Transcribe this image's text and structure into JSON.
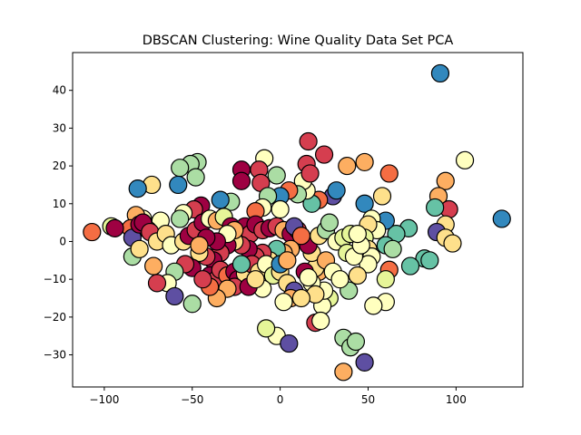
{
  "chart_data": {
    "type": "scatter",
    "title": "DBSCAN Clustering: Wine Quality Data Set PCA",
    "xlabel": "",
    "ylabel": "",
    "xlim": [
      -118,
      138
    ],
    "ylim": [
      -38.5,
      50
    ],
    "xticks": [
      -100,
      -50,
      0,
      50,
      100
    ],
    "yticks": [
      -30,
      -20,
      -10,
      0,
      10,
      20,
      30,
      40
    ],
    "xtick_labels": [
      "−100",
      "−50",
      "0",
      "50",
      "100"
    ],
    "ytick_labels": [
      "−30",
      "−20",
      "−10",
      "0",
      "10",
      "20",
      "30",
      "40"
    ],
    "grid": false,
    "legend": "none",
    "colormap": "Spectral",
    "colors": {
      "c0": "#9e0142",
      "c1": "#d53e4f",
      "c2": "#f46d43",
      "c3": "#fdae61",
      "c4": "#fee08b",
      "c5": "#ffffbf",
      "c6": "#e6f598",
      "c7": "#abdda4",
      "c8": "#66c2a5",
      "c9": "#3288bd",
      "c10": "#5e4fa2"
    },
    "points": [
      {
        "x": 91,
        "y": 44.5,
        "c": "c9"
      },
      {
        "x": 105,
        "y": 21.5,
        "c": "c5"
      },
      {
        "x": 126,
        "y": 6,
        "c": "c9"
      },
      {
        "x": 16,
        "y": 26.5,
        "c": "c1"
      },
      {
        "x": 25,
        "y": 23,
        "c": "c1"
      },
      {
        "x": 38,
        "y": 20,
        "c": "c3"
      },
      {
        "x": 48,
        "y": 21,
        "c": "c3"
      },
      {
        "x": 62,
        "y": 18,
        "c": "c2"
      },
      {
        "x": 94,
        "y": 16,
        "c": "c3"
      },
      {
        "x": 90,
        "y": 12,
        "c": "c3"
      },
      {
        "x": 96,
        "y": 8.5,
        "c": "c1"
      },
      {
        "x": 88,
        "y": 9,
        "c": "c8"
      },
      {
        "x": 94,
        "y": 4.5,
        "c": "c4"
      },
      {
        "x": 89,
        "y": 2.5,
        "c": "c10"
      },
      {
        "x": 94,
        "y": 1,
        "c": "c4"
      },
      {
        "x": 98,
        "y": -0.5,
        "c": "c4"
      },
      {
        "x": 73,
        "y": 3.5,
        "c": "c8"
      },
      {
        "x": 66,
        "y": 2,
        "c": "c8"
      },
      {
        "x": 60,
        "y": 5.5,
        "c": "c9"
      },
      {
        "x": 58,
        "y": 12,
        "c": "c4"
      },
      {
        "x": 48,
        "y": 10,
        "c": "c9"
      },
      {
        "x": 52,
        "y": 6,
        "c": "c5"
      },
      {
        "x": 55,
        "y": 3,
        "c": "c5"
      },
      {
        "x": 50,
        "y": 4.5,
        "c": "c4"
      },
      {
        "x": 48,
        "y": 1,
        "c": "c6"
      },
      {
        "x": 50,
        "y": -2,
        "c": "c4"
      },
      {
        "x": 52,
        "y": -4,
        "c": "c5"
      },
      {
        "x": 50,
        "y": -6,
        "c": "c5"
      },
      {
        "x": 60,
        "y": -1,
        "c": "c8"
      },
      {
        "x": 64,
        "y": -2,
        "c": "c7"
      },
      {
        "x": 62,
        "y": -7.5,
        "c": "c2"
      },
      {
        "x": 60,
        "y": -10,
        "c": "c6"
      },
      {
        "x": 82,
        "y": -4.5,
        "c": "c8"
      },
      {
        "x": 85,
        "y": -5,
        "c": "c8"
      },
      {
        "x": 74,
        "y": -6.5,
        "c": "c8"
      },
      {
        "x": 60,
        "y": -16,
        "c": "c5"
      },
      {
        "x": 53,
        "y": -17,
        "c": "c5"
      },
      {
        "x": 48,
        "y": -32,
        "c": "c10"
      },
      {
        "x": 36,
        "y": -34.5,
        "c": "c3"
      },
      {
        "x": 36,
        "y": -25.5,
        "c": "c7"
      },
      {
        "x": 40,
        "y": -28,
        "c": "c7"
      },
      {
        "x": 43,
        "y": -26.5,
        "c": "c7"
      },
      {
        "x": 39,
        "y": -13,
        "c": "c7"
      },
      {
        "x": 28,
        "y": -15,
        "c": "c6"
      },
      {
        "x": 24,
        "y": -17,
        "c": "c5"
      },
      {
        "x": 20,
        "y": -21.5,
        "c": "c1"
      },
      {
        "x": 23,
        "y": -21,
        "c": "c5"
      },
      {
        "x": 25,
        "y": -13,
        "c": "c5"
      },
      {
        "x": 22,
        "y": -8,
        "c": "c3"
      },
      {
        "x": 20,
        "y": -7,
        "c": "c4"
      },
      {
        "x": 18,
        "y": -3,
        "c": "c4"
      },
      {
        "x": 16,
        "y": -1,
        "c": "c0"
      },
      {
        "x": 22,
        "y": 1.5,
        "c": "c4"
      },
      {
        "x": 26,
        "y": 3,
        "c": "c7"
      },
      {
        "x": 28,
        "y": 5,
        "c": "c7"
      },
      {
        "x": 32,
        "y": 0,
        "c": "c5"
      },
      {
        "x": 36,
        "y": 1,
        "c": "c6"
      },
      {
        "x": 40,
        "y": 2,
        "c": "c6"
      },
      {
        "x": 38,
        "y": -3,
        "c": "c6"
      },
      {
        "x": 30,
        "y": 12,
        "c": "c10"
      },
      {
        "x": 32,
        "y": 13.5,
        "c": "c9"
      },
      {
        "x": 22,
        "y": 11,
        "c": "c2"
      },
      {
        "x": 18,
        "y": 10,
        "c": "c8"
      },
      {
        "x": 15,
        "y": 13.5,
        "c": "c5"
      },
      {
        "x": 13,
        "y": 16,
        "c": "c5"
      },
      {
        "x": 15,
        "y": 20.5,
        "c": "c1"
      },
      {
        "x": 17,
        "y": 18,
        "c": "c1"
      },
      {
        "x": 10,
        "y": 12.5,
        "c": "c7"
      },
      {
        "x": 5,
        "y": 13.5,
        "c": "c2"
      },
      {
        "x": 0,
        "y": 12,
        "c": "c9"
      },
      {
        "x": 0,
        "y": 8.5,
        "c": "c5"
      },
      {
        "x": -2,
        "y": 17.5,
        "c": "c7"
      },
      {
        "x": -9,
        "y": 22,
        "c": "c5"
      },
      {
        "x": -12,
        "y": 19,
        "c": "c1"
      },
      {
        "x": -22,
        "y": 19,
        "c": "c0"
      },
      {
        "x": -22,
        "y": 16,
        "c": "c0"
      },
      {
        "x": -11,
        "y": 15.5,
        "c": "c1"
      },
      {
        "x": -7,
        "y": 12,
        "c": "c7"
      },
      {
        "x": -10,
        "y": 9,
        "c": "c5"
      },
      {
        "x": -14,
        "y": 8,
        "c": "c2"
      },
      {
        "x": -28,
        "y": 10.5,
        "c": "c7"
      },
      {
        "x": -34,
        "y": 11,
        "c": "c9"
      },
      {
        "x": -47,
        "y": 21,
        "c": "c7"
      },
      {
        "x": -51,
        "y": 20.5,
        "c": "c7"
      },
      {
        "x": -57,
        "y": 19.5,
        "c": "c7"
      },
      {
        "x": -48,
        "y": 17,
        "c": "c7"
      },
      {
        "x": -58,
        "y": 15,
        "c": "c9"
      },
      {
        "x": -73,
        "y": 15,
        "c": "c4"
      },
      {
        "x": -81,
        "y": 14,
        "c": "c9"
      },
      {
        "x": -45,
        "y": 9.5,
        "c": "c0"
      },
      {
        "x": -49,
        "y": 8.5,
        "c": "c1"
      },
      {
        "x": -55,
        "y": 7.5,
        "c": "c5"
      },
      {
        "x": -57,
        "y": 6,
        "c": "c7"
      },
      {
        "x": -68,
        "y": 5.5,
        "c": "c5"
      },
      {
        "x": -78,
        "y": 6,
        "c": "c5"
      },
      {
        "x": -82,
        "y": 7,
        "c": "c3"
      },
      {
        "x": -75,
        "y": 3,
        "c": "c6"
      },
      {
        "x": -85,
        "y": 3.5,
        "c": "c2"
      },
      {
        "x": -96,
        "y": 4,
        "c": "c6"
      },
      {
        "x": -94,
        "y": 3.5,
        "c": "c0"
      },
      {
        "x": -107,
        "y": 2.5,
        "c": "c2"
      },
      {
        "x": -84,
        "y": 1,
        "c": "c10"
      },
      {
        "x": -80,
        "y": 4.5,
        "c": "c0"
      },
      {
        "x": -78,
        "y": 5,
        "c": "c0"
      },
      {
        "x": -74,
        "y": 2.5,
        "c": "c1"
      },
      {
        "x": -70,
        "y": 0,
        "c": "c4"
      },
      {
        "x": -65,
        "y": 2,
        "c": "c4"
      },
      {
        "x": -62,
        "y": -1,
        "c": "c5"
      },
      {
        "x": -55,
        "y": 0,
        "c": "c4"
      },
      {
        "x": -52,
        "y": 1.5,
        "c": "c0"
      },
      {
        "x": -48,
        "y": 3,
        "c": "c1"
      },
      {
        "x": -44,
        "y": 5,
        "c": "c0"
      },
      {
        "x": -40,
        "y": 6,
        "c": "c5"
      },
      {
        "x": -36,
        "y": 5.5,
        "c": "c3"
      },
      {
        "x": -32,
        "y": 6.5,
        "c": "c6"
      },
      {
        "x": -28,
        "y": 4,
        "c": "c0"
      },
      {
        "x": -24,
        "y": 3,
        "c": "c0"
      },
      {
        "x": -20,
        "y": 4,
        "c": "c0"
      },
      {
        "x": -17,
        "y": 2,
        "c": "c1"
      },
      {
        "x": -14,
        "y": 4.5,
        "c": "c0"
      },
      {
        "x": -10,
        "y": 3,
        "c": "c1"
      },
      {
        "x": -6,
        "y": 3.5,
        "c": "c0"
      },
      {
        "x": -2,
        "y": 4,
        "c": "c1"
      },
      {
        "x": 2,
        "y": 3,
        "c": "c3"
      },
      {
        "x": 6,
        "y": 2,
        "c": "c0"
      },
      {
        "x": 10,
        "y": 3,
        "c": "c1"
      },
      {
        "x": 8,
        "y": 4,
        "c": "c10"
      },
      {
        "x": 12,
        "y": 1.5,
        "c": "c2"
      },
      {
        "x": 6,
        "y": -2,
        "c": "c3"
      },
      {
        "x": 2,
        "y": -3,
        "c": "c3"
      },
      {
        "x": -2,
        "y": -2,
        "c": "c8"
      },
      {
        "x": -6,
        "y": -5,
        "c": "c4"
      },
      {
        "x": -10,
        "y": -3,
        "c": "c1"
      },
      {
        "x": -14,
        "y": -4,
        "c": "c1"
      },
      {
        "x": -18,
        "y": -2,
        "c": "c0"
      },
      {
        "x": -22,
        "y": -1,
        "c": "c1"
      },
      {
        "x": -26,
        "y": 0,
        "c": "c4"
      },
      {
        "x": -30,
        "y": -1,
        "c": "c0"
      },
      {
        "x": -34,
        "y": -3,
        "c": "c1"
      },
      {
        "x": -38,
        "y": -5,
        "c": "c0"
      },
      {
        "x": -42,
        "y": -4,
        "c": "c1"
      },
      {
        "x": -46,
        "y": -3,
        "c": "c4"
      },
      {
        "x": -50,
        "y": -7,
        "c": "c0"
      },
      {
        "x": -54,
        "y": -6,
        "c": "c1"
      },
      {
        "x": -60,
        "y": -8,
        "c": "c7"
      },
      {
        "x": -64,
        "y": -11,
        "c": "c5"
      },
      {
        "x": -60,
        "y": -14.5,
        "c": "c10"
      },
      {
        "x": -50,
        "y": -16.5,
        "c": "c7"
      },
      {
        "x": -40,
        "y": -9,
        "c": "c0"
      },
      {
        "x": -36,
        "y": -10,
        "c": "c1"
      },
      {
        "x": -34,
        "y": -7.5,
        "c": "c1"
      },
      {
        "x": -30,
        "y": -9,
        "c": "c2"
      },
      {
        "x": -26,
        "y": -8,
        "c": "c0"
      },
      {
        "x": -24,
        "y": -10,
        "c": "c0"
      },
      {
        "x": -20,
        "y": -8.5,
        "c": "c4"
      },
      {
        "x": -16,
        "y": -6,
        "c": "c1"
      },
      {
        "x": -12,
        "y": -8,
        "c": "c4"
      },
      {
        "x": -8,
        "y": -6,
        "c": "c5"
      },
      {
        "x": -4,
        "y": -9,
        "c": "c6"
      },
      {
        "x": 0,
        "y": -8,
        "c": "c4"
      },
      {
        "x": 4,
        "y": -11,
        "c": "c4"
      },
      {
        "x": 8,
        "y": -13,
        "c": "c10"
      },
      {
        "x": 6,
        "y": -15,
        "c": "c3"
      },
      {
        "x": 2,
        "y": -16,
        "c": "c5"
      },
      {
        "x": -2,
        "y": -25,
        "c": "c5"
      },
      {
        "x": -8,
        "y": -23,
        "c": "c6"
      },
      {
        "x": 5,
        "y": -27,
        "c": "c10"
      },
      {
        "x": -10,
        "y": -12.5,
        "c": "c5"
      },
      {
        "x": -26,
        "y": -12,
        "c": "c1"
      },
      {
        "x": -30,
        "y": -12.5,
        "c": "c3"
      },
      {
        "x": -36,
        "y": -15,
        "c": "c3"
      },
      {
        "x": -40,
        "y": -12,
        "c": "c2"
      },
      {
        "x": -44,
        "y": -10,
        "c": "c1"
      },
      {
        "x": -70,
        "y": -11,
        "c": "c1"
      },
      {
        "x": -72,
        "y": -6.5,
        "c": "c3"
      },
      {
        "x": -84,
        "y": -4,
        "c": "c7"
      },
      {
        "x": -80,
        "y": -2,
        "c": "c4"
      },
      {
        "x": 0,
        "y": -6,
        "c": "c9"
      },
      {
        "x": 4,
        "y": -5,
        "c": "c3"
      },
      {
        "x": 14,
        "y": -8,
        "c": "c0"
      },
      {
        "x": 18,
        "y": -11,
        "c": "c5"
      },
      {
        "x": 20,
        "y": -14,
        "c": "c4"
      },
      {
        "x": 12,
        "y": -15,
        "c": "c4"
      },
      {
        "x": 16,
        "y": -9.5,
        "c": "c5"
      },
      {
        "x": 26,
        "y": -5,
        "c": "c3"
      },
      {
        "x": 30,
        "y": -8,
        "c": "c5"
      },
      {
        "x": 34,
        "y": -10,
        "c": "c5"
      },
      {
        "x": 44,
        "y": -9,
        "c": "c4"
      },
      {
        "x": 42,
        "y": -4,
        "c": "c5"
      },
      {
        "x": 46,
        "y": -1,
        "c": "c5"
      },
      {
        "x": 44,
        "y": 2,
        "c": "c5"
      },
      {
        "x": -22,
        "y": -6,
        "c": "c8"
      },
      {
        "x": -18,
        "y": -12,
        "c": "c0"
      },
      {
        "x": -14,
        "y": -10,
        "c": "c4"
      },
      {
        "x": -26,
        "y": 3,
        "c": "c3"
      },
      {
        "x": -30,
        "y": 2,
        "c": "c5"
      },
      {
        "x": -36,
        "y": 0,
        "c": "c0"
      },
      {
        "x": -42,
        "y": 1,
        "c": "c0"
      },
      {
        "x": -46,
        "y": -1,
        "c": "c3"
      }
    ]
  }
}
